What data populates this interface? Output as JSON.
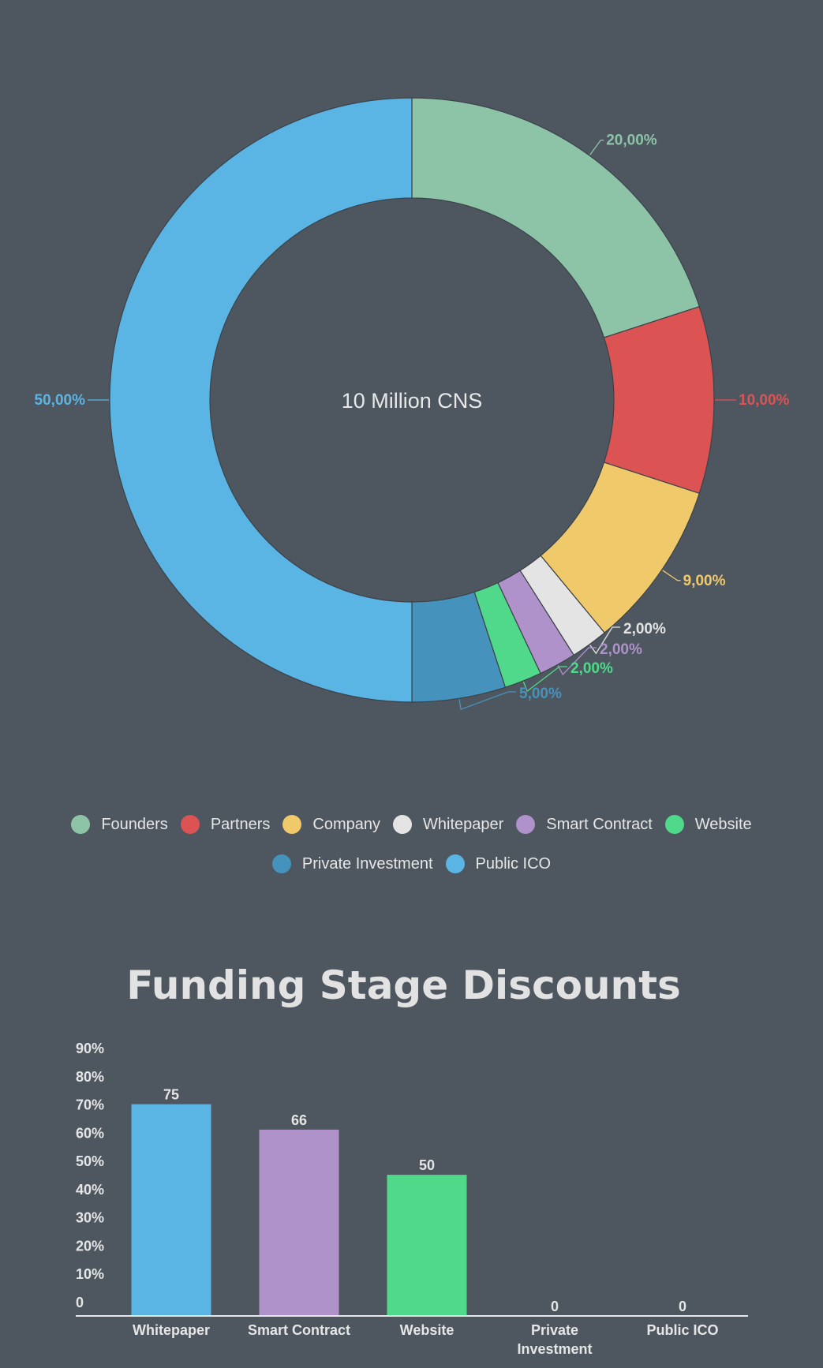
{
  "donut": {
    "center_label": "10 Million CNS",
    "chart_data": {
      "type": "pie",
      "style": "donut",
      "slices": [
        {
          "label": "Founders",
          "value": 20,
          "display": "20,00%",
          "color": "#8dc4a8"
        },
        {
          "label": "Partners",
          "value": 10,
          "display": "10,00%",
          "color": "#dc5354"
        },
        {
          "label": "Company",
          "value": 9,
          "display": "9,00%",
          "color": "#f0c96a"
        },
        {
          "label": "Whitepaper",
          "value": 2,
          "display": "2,00%",
          "color": "#e4e4e4"
        },
        {
          "label": "Smart Contract",
          "value": 2,
          "display": "2,00%",
          "color": "#ae92c9"
        },
        {
          "label": "Website",
          "value": 2,
          "display": "2,00%",
          "color": "#50d98a"
        },
        {
          "label": "Private Investment",
          "value": 5,
          "display": "5,00%",
          "color": "#4592bd"
        },
        {
          "label": "Public ICO",
          "value": 50,
          "display": "50,00%",
          "color": "#5bb5e4"
        }
      ]
    }
  },
  "legend": {
    "rows": [
      [
        {
          "label": "Founders",
          "color": "#8dc4a8"
        },
        {
          "label": "Partners",
          "color": "#dc5354"
        },
        {
          "label": "Company",
          "color": "#f0c96a"
        },
        {
          "label": "Whitepaper",
          "color": "#e4e4e4"
        },
        {
          "label": "Smart Contract",
          "color": "#ae92c9"
        },
        {
          "label": "Website",
          "color": "#50d98a"
        }
      ],
      [
        {
          "label": "Private Investment",
          "color": "#4592bd"
        },
        {
          "label": "Public ICO",
          "color": "#5bb5e4"
        }
      ]
    ]
  },
  "discounts": {
    "title": "Funding Stage Discounts",
    "chart_data": {
      "type": "bar",
      "categories": [
        "Whitepaper",
        "Smart Contract",
        "Website",
        "Private Investment",
        "Public ICO"
      ],
      "category_lines": [
        [
          "Whitepaper"
        ],
        [
          "Smart Contract"
        ],
        [
          "Website"
        ],
        [
          "Private",
          "Investment"
        ],
        [
          "Public ICO"
        ]
      ],
      "values": [
        75,
        66,
        50,
        0,
        0
      ],
      "value_labels": [
        "75",
        "66",
        "50",
        "0",
        "0"
      ],
      "colors": [
        "#5bb5e4",
        "#ae92c9",
        "#50d98a",
        "#4592bd",
        "#5bb5e4"
      ],
      "yticks": [
        "0",
        "10%",
        "20%",
        "30%",
        "40%",
        "50%",
        "60%",
        "70%",
        "80%",
        "90%"
      ],
      "ylim": [
        0,
        90
      ]
    }
  }
}
